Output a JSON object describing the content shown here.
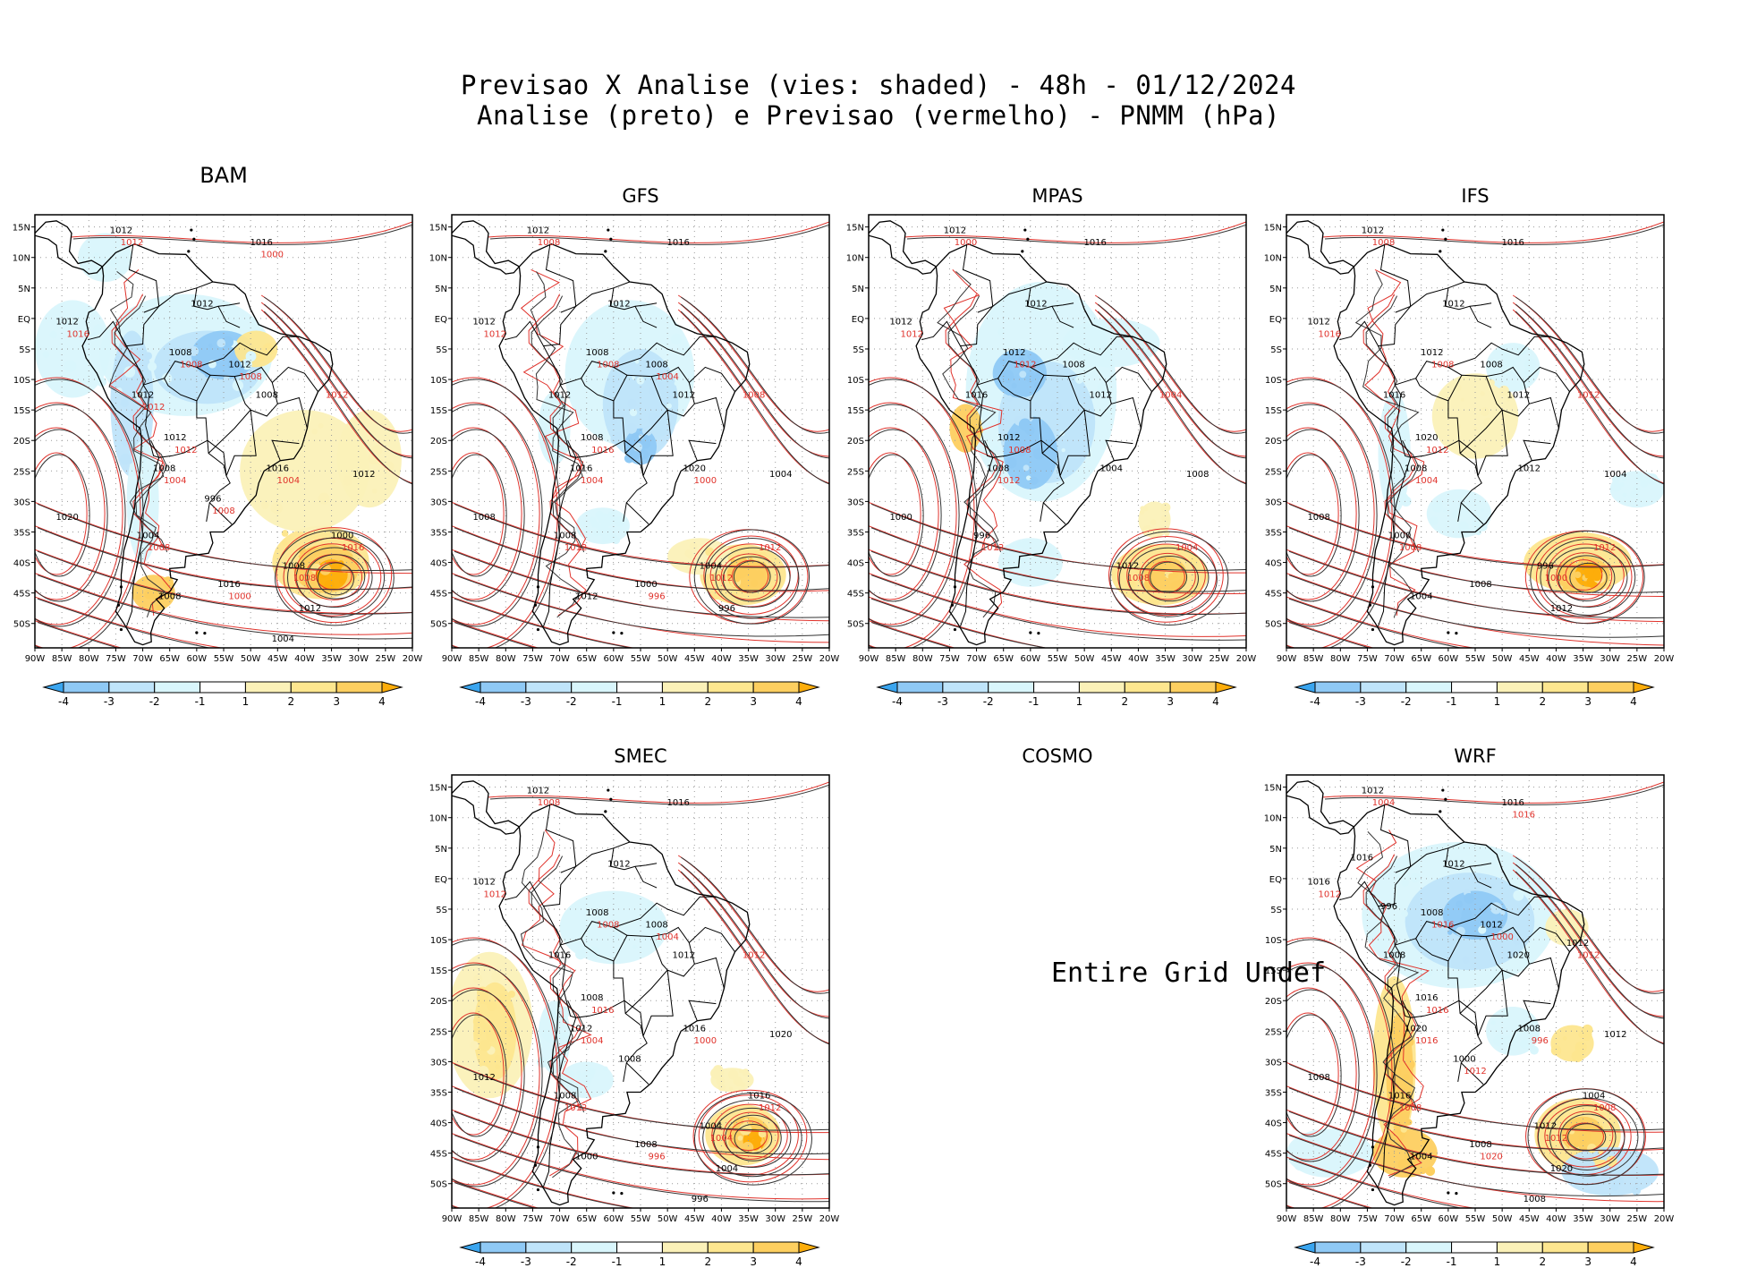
{
  "header": {
    "title": "Previsao X Analise (vies: shaded) - 48h - 01/12/2024",
    "subtitle": "Analise (preto) e Previsao (vermelho) - PNMM (hPa)"
  },
  "colors": {
    "neg4": "#3aa5ef",
    "neg3": "#8fc9f5",
    "neg2": "#bfe4fa",
    "neg1": "#d9f6fc",
    "pos1": "#fbf1b8",
    "pos2": "#fde68f",
    "pos3": "#fdcf60",
    "pos4": "#fdad0a",
    "analysis": "#000000",
    "forecast": "#e0322b",
    "grid": "#9a9a9a"
  },
  "axes": {
    "lat_labels": [
      "15N",
      "10N",
      "5N",
      "EQ",
      "5S",
      "10S",
      "15S",
      "20S",
      "25S",
      "30S",
      "35S",
      "40S",
      "45S",
      "50S"
    ],
    "lon_labels": [
      "90W",
      "85W",
      "80W",
      "75W",
      "70W",
      "65W",
      "60W",
      "55W",
      "50W",
      "45W",
      "40W",
      "35W",
      "30W",
      "25W",
      "20W"
    ]
  },
  "colorbar": {
    "labels": [
      "-4",
      "-3",
      "-2",
      "-1",
      "1",
      "2",
      "3",
      "4"
    ]
  },
  "panels": [
    {
      "name": "BAM",
      "available": true,
      "labels_black": [
        "1012",
        "1016",
        "1012",
        "1012",
        "1008",
        "1012",
        "1012",
        "1008",
        "1012",
        "1008",
        "1016",
        "1012",
        "1020",
        "1004",
        "1008",
        "1016",
        "1012",
        "1008",
        "1004",
        "1000",
        "996"
      ],
      "labels_red": [
        "1016",
        "1012",
        "1008",
        "1008",
        "1012",
        "1008",
        "1004",
        "1008",
        "1016",
        "1012",
        "1008",
        "1004",
        "1000",
        "1008",
        "1000",
        "1012"
      ]
    },
    {
      "name": "GFS",
      "available": true,
      "labels_black": [
        "1012",
        "1016",
        "1012",
        "1012",
        "1008",
        "1008",
        "1012",
        "1012",
        "1008",
        "1016",
        "1020",
        "1004",
        "1008",
        "1008",
        "1004",
        "1000",
        "996",
        "1012"
      ],
      "labels_red": [
        "1012",
        "1016",
        "1012",
        "1008",
        "1008",
        "1008",
        "1004",
        "1012",
        "1012",
        "1008",
        "1004",
        "1000",
        "996"
      ]
    },
    {
      "name": "MPAS",
      "available": true,
      "labels_black": [
        "1012",
        "1016",
        "1012",
        "1012",
        "1012",
        "1008",
        "1016",
        "1012",
        "1012",
        "1008",
        "1004",
        "1008",
        "1000",
        "996",
        "1012"
      ],
      "labels_red": [
        "1012",
        "1008",
        "1012",
        "1008",
        "1004",
        "1012",
        "1012",
        "1008",
        "1004",
        "1000"
      ]
    },
    {
      "name": "IFS",
      "available": true,
      "labels_black": [
        "1012",
        "1016",
        "1012",
        "1012",
        "1012",
        "1008",
        "1016",
        "1012",
        "1020",
        "1008",
        "1012",
        "1004",
        "1008",
        "1000",
        "996",
        "1008",
        "1012",
        "1004"
      ],
      "labels_red": [
        "1016",
        "1012",
        "1008",
        "1008",
        "1012",
        "1008",
        "1004",
        "1000",
        "1012",
        "1008"
      ]
    },
    {
      "name": "SMEC",
      "available": true,
      "labels_black": [
        "1012",
        "1016",
        "1012",
        "1012",
        "1008",
        "1008",
        "1016",
        "1012",
        "1008",
        "1012",
        "1016",
        "1020",
        "1012",
        "1008",
        "1004",
        "1008",
        "1004",
        "1000",
        "996",
        "1016",
        "1008"
      ],
      "labels_red": [
        "1012",
        "1016",
        "1012",
        "1008",
        "1012",
        "1008",
        "1004",
        "1004",
        "1012",
        "1008",
        "1004",
        "1000",
        "996"
      ]
    },
    {
      "name": "COSMO",
      "available": false,
      "message": "Entire Grid Undef"
    },
    {
      "name": "WRF",
      "available": true,
      "labels_black": [
        "1012",
        "1016",
        "1012",
        "1016",
        "1008",
        "1012",
        "1008",
        "1020",
        "1016",
        "1020",
        "1008",
        "1012",
        "1008",
        "1016",
        "1012",
        "1008",
        "1020",
        "1004",
        "1008",
        "1004",
        "1000",
        "996",
        "1016",
        "1012"
      ],
      "labels_red": [
        "1012",
        "1016",
        "1008",
        "1008",
        "1012",
        "1016",
        "1016",
        "1012",
        "1008",
        "1004",
        "1000",
        "996",
        "1020",
        "1012",
        "1016"
      ]
    }
  ]
}
